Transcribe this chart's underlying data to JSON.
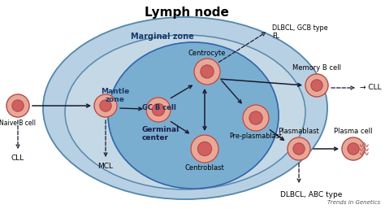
{
  "title": "Lymph node",
  "marginal_zone_color": "#b8d0e4",
  "mantle_fill_color": "#c2d8e8",
  "gc_color": "#7aaed0",
  "cell_outer": "#e8a898",
  "cell_inner": "#d06060",
  "cell_edge": "#b04848",
  "labels": {
    "naive_b_cell": "Naive B cell",
    "mantle_zone": "Mantle\nzone",
    "gc_b_cell": "GC B cell",
    "germinal_center": "Germinal\ncenter",
    "centrocyte": "Centrocyte",
    "centroblast": "Centroblast",
    "pre_plasmablast": "Pre-plasmablast",
    "memory_b_cell": "Memory B cell",
    "plasmablast": "Plasmablast",
    "plasma_cell": "Plasma cell",
    "cll_left": "CLL",
    "mcl": "MCL",
    "cll_right": "→ CLL",
    "dlbcl_gcb": "DLBCL, GCB type\nFL",
    "dlbcl_abc": "DLBCL, ABC type",
    "marginal_zone": "Marginal zone",
    "trends": "Trends in Genetics"
  }
}
